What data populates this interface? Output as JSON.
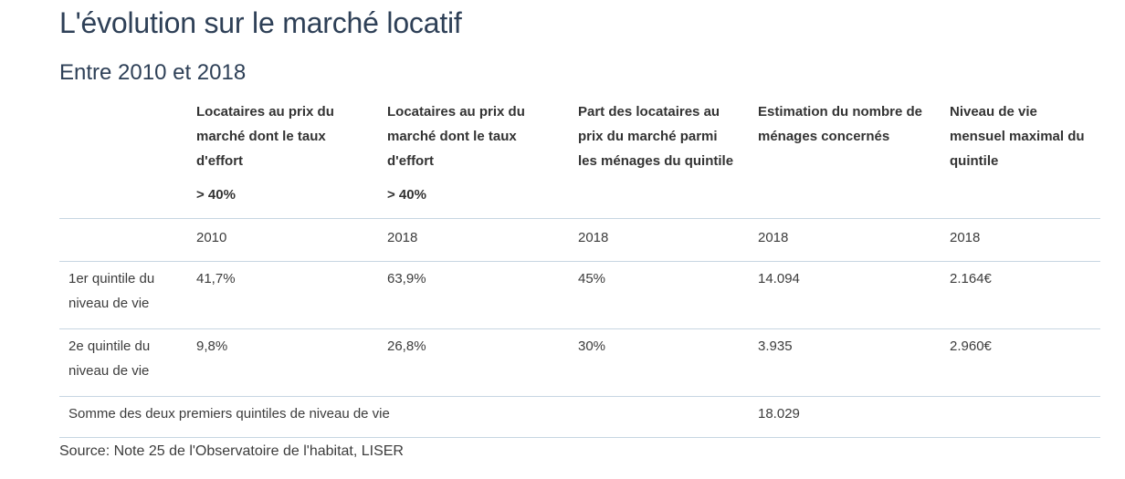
{
  "title": "L'évolution sur le marché locatif",
  "subtitle": "Entre 2010 et 2018",
  "table": {
    "headers": [
      {
        "label": "",
        "threshold": ""
      },
      {
        "label": "Locataires au prix du marché dont le taux d'effort",
        "threshold": "> 40%"
      },
      {
        "label": "Locataires au prix du marché dont le taux d'effort",
        "threshold": "> 40%"
      },
      {
        "label": "Part des locataires au prix du marché parmi les ménages du quintile",
        "threshold": ""
      },
      {
        "label": "Estimation du nombre de ménages concernés",
        "threshold": ""
      },
      {
        "label": "Niveau de vie mensuel maximal du quintile",
        "threshold": ""
      }
    ],
    "years": [
      "",
      "2010",
      "2018",
      "2018",
      "2018",
      "2018"
    ],
    "rows": [
      [
        "1er quintile du niveau de vie",
        "41,7%",
        "63,9%",
        "45%",
        "14.094",
        "2.164€"
      ],
      [
        "2e quintile du niveau de vie",
        "9,8%",
        "26,8%",
        "30%",
        "3.935",
        "2.960€"
      ]
    ],
    "sum_row": {
      "label": "Somme des deux premiers quintiles de niveau de vie",
      "value": "18.029"
    }
  },
  "source": "Source: Note 25 de l'Observatoire de l'habitat, LISER",
  "colors": {
    "title": "#2e4057",
    "rule": "#c7d6e2",
    "text": "#3c3c3c"
  }
}
